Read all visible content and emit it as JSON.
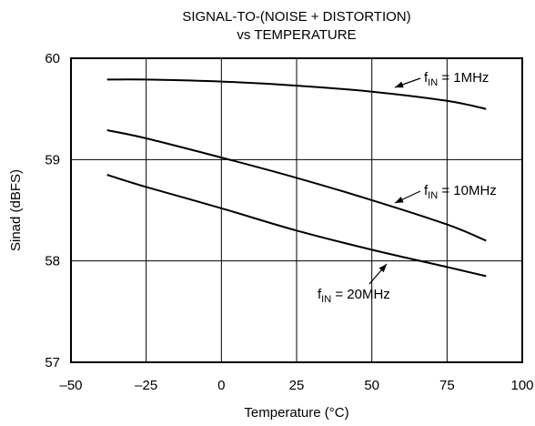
{
  "chart_data": {
    "type": "line",
    "title_line1": "SIGNAL-TO-(NOISE + DISTORTION)",
    "title_line2": "vs TEMPERATURE",
    "xlabel": "Temperature (°C)",
    "ylabel": "Sinad (dBFS)",
    "xlim": [
      -50,
      100
    ],
    "ylim": [
      57,
      60
    ],
    "xticks": [
      -50,
      -25,
      0,
      25,
      50,
      75,
      100
    ],
    "xtick_labels": [
      "–50",
      "–25",
      "0",
      "25",
      "50",
      "75",
      "100"
    ],
    "yticks": [
      57,
      58,
      59,
      60
    ],
    "ytick_labels": [
      "57",
      "58",
      "59",
      "60"
    ],
    "grid": true,
    "series": [
      {
        "name": "fIN = 1MHz",
        "label_main": "f",
        "label_sub": "IN",
        "label_rest": " = 1MHz",
        "x": [
          -38,
          -25,
          0,
          25,
          50,
          75,
          88
        ],
        "y": [
          59.79,
          59.79,
          59.77,
          59.73,
          59.67,
          59.58,
          59.5
        ]
      },
      {
        "name": "fIN = 10MHz",
        "label_main": "f",
        "label_sub": "IN",
        "label_rest": " = 10MHz",
        "x": [
          -38,
          -25,
          0,
          25,
          50,
          75,
          88
        ],
        "y": [
          59.29,
          59.21,
          59.02,
          58.82,
          58.6,
          58.36,
          58.2
        ]
      },
      {
        "name": "fIN = 20MHz",
        "label_main": "f",
        "label_sub": "IN",
        "label_rest": " = 20MHz",
        "x": [
          -38,
          -25,
          0,
          25,
          50,
          75,
          88
        ],
        "y": [
          58.85,
          58.73,
          58.52,
          58.3,
          58.11,
          57.94,
          57.85
        ]
      }
    ]
  }
}
